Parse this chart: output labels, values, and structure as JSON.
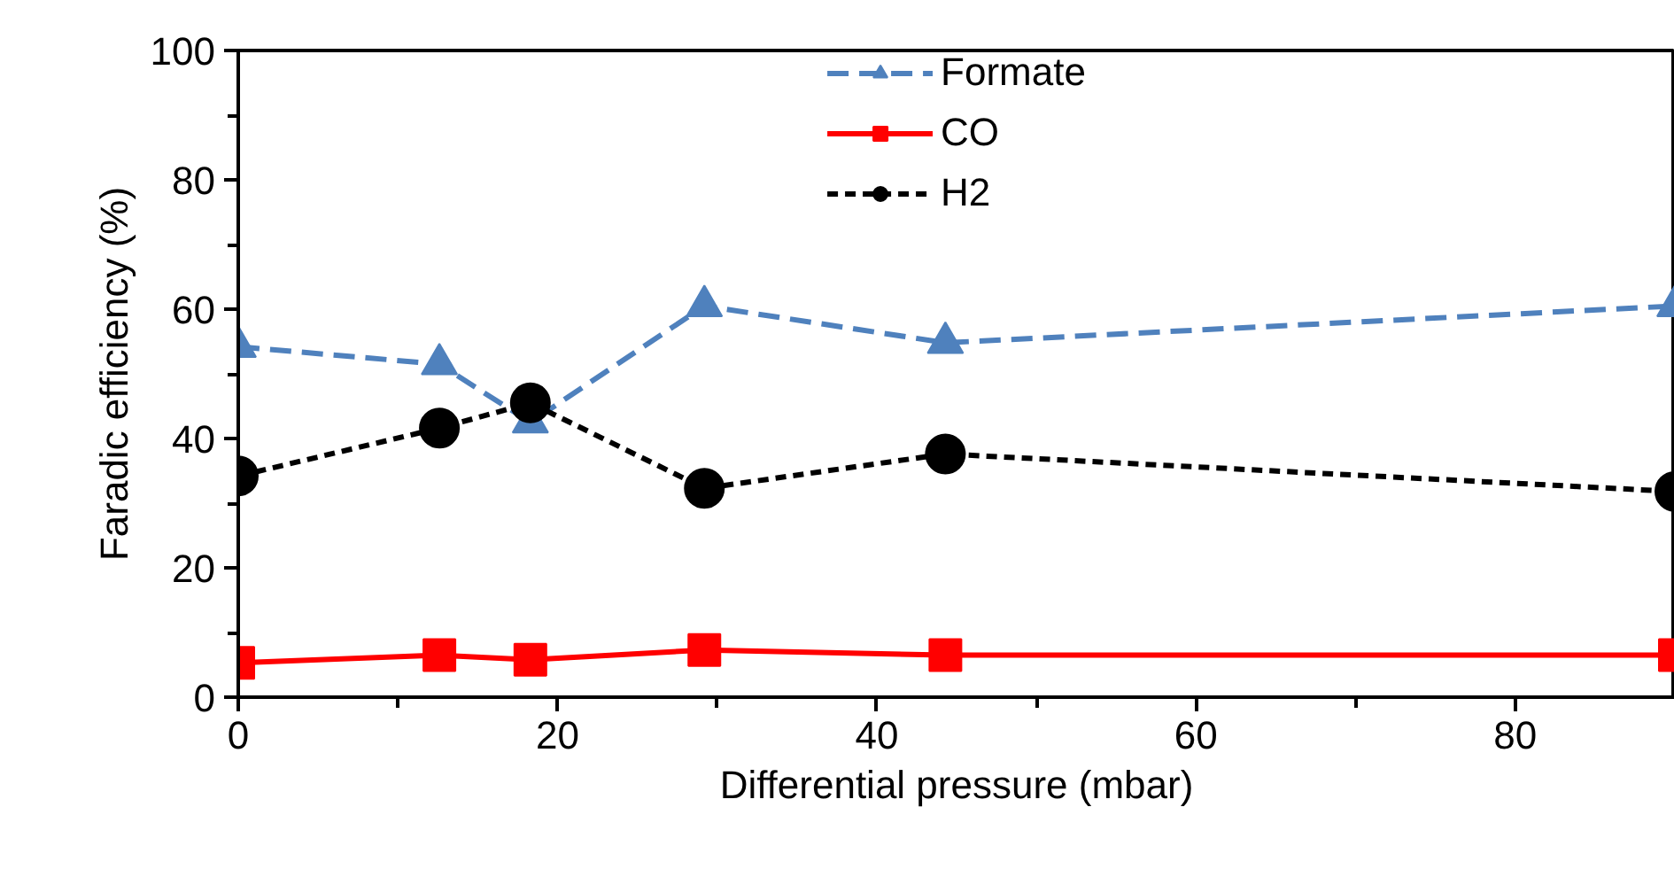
{
  "chart_data": {
    "type": "line",
    "xlabel": "Differential pressure (mbar)",
    "ylabel": "Faradic efficiency (%)",
    "xlim": [
      0,
      90
    ],
    "xticks": [
      0,
      20,
      40,
      60,
      80
    ],
    "ylim": [
      0,
      100
    ],
    "yticks": [
      0,
      20,
      40,
      60,
      80,
      100
    ],
    "grid": false,
    "legend": "top",
    "series": [
      {
        "name": "Formate",
        "color": "#4f81bd",
        "marker": "triangle",
        "line_style": "dashed",
        "x": [
          0,
          12.6,
          18.3,
          29.2,
          44.3,
          90
        ],
        "values": [
          54.2,
          51.5,
          42.5,
          60.5,
          54.8,
          60.5
        ]
      },
      {
        "name": "CO",
        "color": "#ff0000",
        "marker": "square",
        "line_style": "solid",
        "x": [
          0,
          12.6,
          18.3,
          29.2,
          44.3,
          90
        ],
        "values": [
          5.3,
          6.5,
          5.8,
          7.3,
          6.5,
          6.5
        ]
      },
      {
        "name": "H2",
        "color": "#000000",
        "marker": "circle",
        "line_style": "dotted",
        "x": [
          0,
          12.6,
          18.3,
          29.2,
          44.3,
          90
        ],
        "values": [
          34.2,
          41.6,
          45.5,
          32.3,
          37.6,
          31.8
        ]
      }
    ]
  }
}
